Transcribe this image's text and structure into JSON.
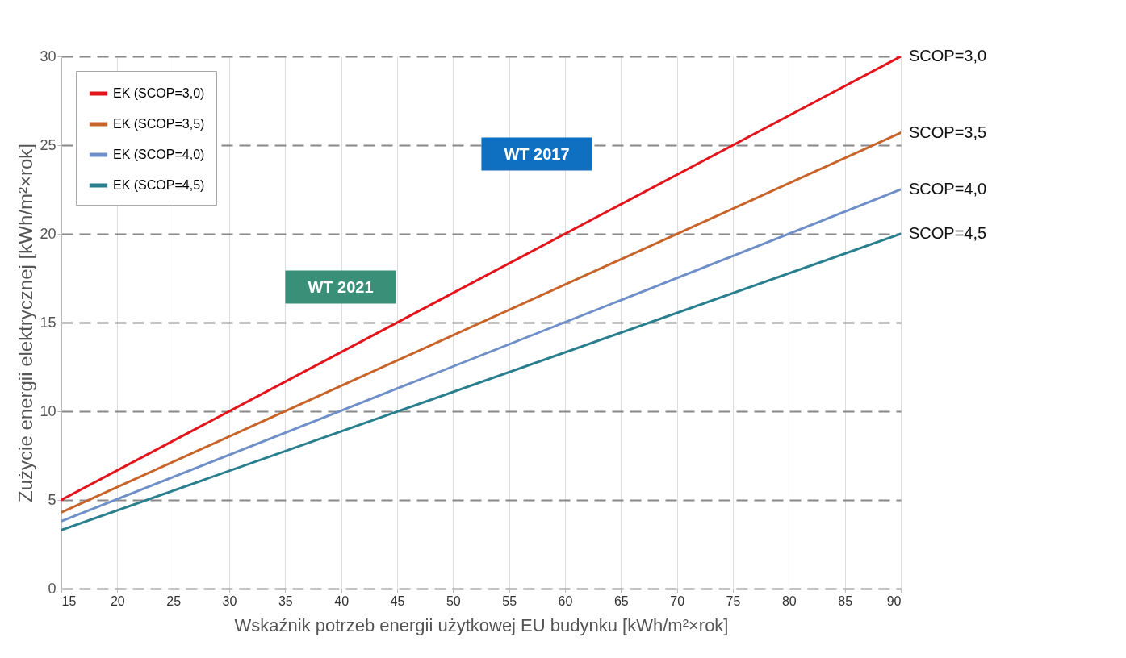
{
  "chart_data": {
    "type": "line",
    "xlabel": "Wskaźnik potrzeb energii użytkowej EU budynku [kWh/m²×rok]",
    "ylabel": "Zużycie energii elektrycznej [kWh/m²×rok]",
    "x": [
      15,
      90
    ],
    "series": [
      {
        "name": "EK (SCOP=3,0)",
        "color": "#e3141b",
        "values": [
          5,
          30
        ]
      },
      {
        "name": "EK (SCOP=3,5)",
        "color": "#c8642a",
        "values": [
          4.3,
          25.7
        ]
      },
      {
        "name": "EK (SCOP=4,0)",
        "color": "#6f8fc8",
        "values": [
          3.8,
          22.5
        ]
      },
      {
        "name": "EK (SCOP=4,5)",
        "color": "#2a7f8f",
        "values": [
          3.3,
          20
        ]
      }
    ],
    "xlim": [
      15,
      90
    ],
    "xticks": [
      15,
      20,
      25,
      30,
      35,
      40,
      45,
      50,
      55,
      60,
      65,
      70,
      75,
      80,
      85,
      90
    ],
    "ylim": [
      0,
      30
    ],
    "yticks": [
      0,
      5,
      10,
      15,
      20,
      25,
      30
    ],
    "grid": true,
    "legend": "top left",
    "annotations": [
      "SCOP=3,0",
      "SCOP=3,5",
      "SCOP=4,0",
      "SCOP=4,5",
      "WT 2017",
      "WT 2021"
    ]
  }
}
